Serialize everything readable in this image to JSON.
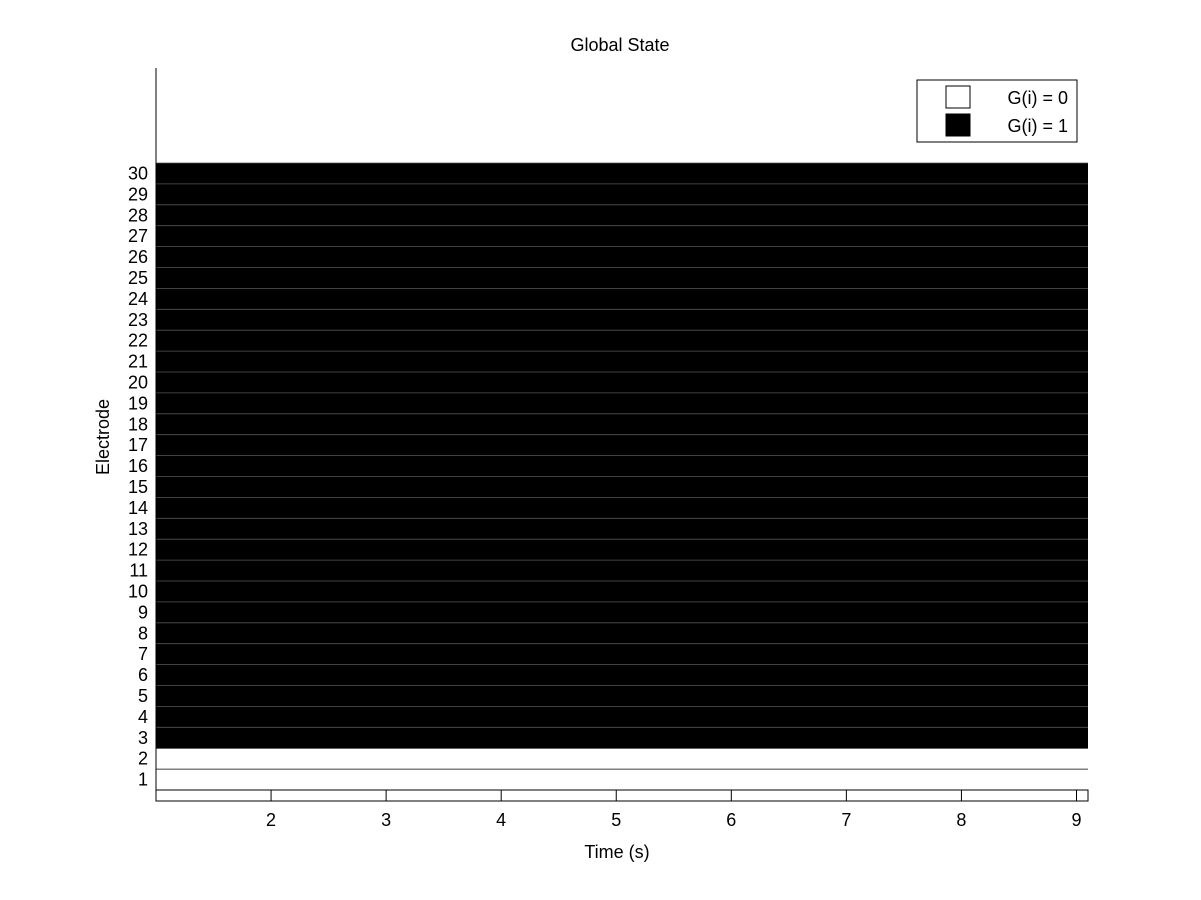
{
  "chart_data": {
    "type": "heatmap",
    "title": "Global State",
    "xlabel": "Time (s)",
    "ylabel": "Electrode",
    "xlim": [
      1,
      9.1
    ],
    "x_ticks": [
      2,
      3,
      4,
      5,
      6,
      7,
      8,
      9
    ],
    "y_ticks": [
      1,
      2,
      3,
      4,
      5,
      6,
      7,
      8,
      9,
      10,
      11,
      12,
      13,
      14,
      15,
      16,
      17,
      18,
      19,
      20,
      21,
      22,
      23,
      24,
      25,
      26,
      27,
      28,
      29,
      30
    ],
    "legend": {
      "placement": "top-right",
      "entries": [
        {
          "label": "G(i) = 0",
          "color": "#ffffff"
        },
        {
          "label": "G(i) = 1",
          "color": "#000000"
        }
      ]
    },
    "rows": [
      {
        "electrode": 1,
        "state": 0
      },
      {
        "electrode": 2,
        "state": 0
      },
      {
        "electrode": 3,
        "state": 1
      },
      {
        "electrode": 4,
        "state": 1
      },
      {
        "electrode": 5,
        "state": 1
      },
      {
        "electrode": 6,
        "state": 1
      },
      {
        "electrode": 7,
        "state": 1
      },
      {
        "electrode": 8,
        "state": 1
      },
      {
        "electrode": 9,
        "state": 1
      },
      {
        "electrode": 10,
        "state": 1
      },
      {
        "electrode": 11,
        "state": 1
      },
      {
        "electrode": 12,
        "state": 1
      },
      {
        "electrode": 13,
        "state": 1
      },
      {
        "electrode": 14,
        "state": 1
      },
      {
        "electrode": 15,
        "state": 1
      },
      {
        "electrode": 16,
        "state": 1
      },
      {
        "electrode": 17,
        "state": 1
      },
      {
        "electrode": 18,
        "state": 1
      },
      {
        "electrode": 19,
        "state": 1
      },
      {
        "electrode": 20,
        "state": 1
      },
      {
        "electrode": 21,
        "state": 1
      },
      {
        "electrode": 22,
        "state": 1
      },
      {
        "electrode": 23,
        "state": 1
      },
      {
        "electrode": 24,
        "state": 1
      },
      {
        "electrode": 25,
        "state": 1
      },
      {
        "electrode": 26,
        "state": 1
      },
      {
        "electrode": 27,
        "state": 1
      },
      {
        "electrode": 28,
        "state": 1
      },
      {
        "electrode": 29,
        "state": 1
      },
      {
        "electrode": 30,
        "state": 1
      }
    ],
    "grid": false
  }
}
